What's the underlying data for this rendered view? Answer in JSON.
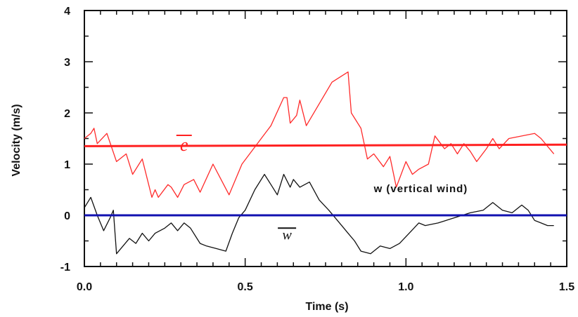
{
  "chart_data": {
    "type": "line",
    "title": "",
    "xlabel": "Time  (s)",
    "ylabel": "Velocity  (m/s)",
    "xlim": [
      0,
      1.5
    ],
    "ylim": [
      -1,
      4
    ],
    "xticks": [
      0.0,
      0.5,
      1.0,
      1.5
    ],
    "xtick_labels": [
      "0.0",
      "0.5",
      "1.0",
      "1.5"
    ],
    "yticks": [
      -1,
      0,
      1,
      2,
      3,
      4
    ],
    "ytick_labels": [
      "-1",
      "0",
      "1",
      "2",
      "3",
      "4"
    ],
    "grid": false,
    "annotations": [
      {
        "text": "w  (vertical wind)",
        "x": 0.9,
        "y": 0.45
      }
    ],
    "series": [
      {
        "label": "e",
        "color": "#ff2a2a",
        "points": [
          [
            0.0,
            1.5
          ],
          [
            0.02,
            1.6
          ],
          [
            0.03,
            1.7
          ],
          [
            0.04,
            1.4
          ],
          [
            0.07,
            1.6
          ],
          [
            0.1,
            1.05
          ],
          [
            0.11,
            1.1
          ],
          [
            0.13,
            1.2
          ],
          [
            0.15,
            0.8
          ],
          [
            0.18,
            1.1
          ],
          [
            0.21,
            0.35
          ],
          [
            0.22,
            0.5
          ],
          [
            0.23,
            0.35
          ],
          [
            0.26,
            0.6
          ],
          [
            0.27,
            0.55
          ],
          [
            0.29,
            0.35
          ],
          [
            0.31,
            0.6
          ],
          [
            0.34,
            0.7
          ],
          [
            0.36,
            0.45
          ],
          [
            0.4,
            1.0
          ],
          [
            0.45,
            0.4
          ],
          [
            0.49,
            1.0
          ],
          [
            0.55,
            1.5
          ],
          [
            0.58,
            1.75
          ],
          [
            0.62,
            2.3
          ],
          [
            0.63,
            2.3
          ],
          [
            0.64,
            1.8
          ],
          [
            0.66,
            1.95
          ],
          [
            0.67,
            2.25
          ],
          [
            0.69,
            1.75
          ],
          [
            0.77,
            2.6
          ],
          [
            0.82,
            2.8
          ],
          [
            0.83,
            2.0
          ],
          [
            0.86,
            1.7
          ],
          [
            0.88,
            1.1
          ],
          [
            0.9,
            1.2
          ],
          [
            0.93,
            0.95
          ],
          [
            0.95,
            1.15
          ],
          [
            0.97,
            0.55
          ],
          [
            1.0,
            1.05
          ],
          [
            1.02,
            0.8
          ],
          [
            1.04,
            0.9
          ],
          [
            1.07,
            1.0
          ],
          [
            1.09,
            1.55
          ],
          [
            1.12,
            1.3
          ],
          [
            1.14,
            1.4
          ],
          [
            1.16,
            1.2
          ],
          [
            1.18,
            1.4
          ],
          [
            1.2,
            1.25
          ],
          [
            1.22,
            1.05
          ],
          [
            1.25,
            1.3
          ],
          [
            1.27,
            1.5
          ],
          [
            1.29,
            1.3
          ],
          [
            1.32,
            1.5
          ],
          [
            1.4,
            1.6
          ],
          [
            1.42,
            1.5
          ],
          [
            1.46,
            1.2
          ]
        ]
      },
      {
        "label": "w (vertical wind)",
        "color": "#111111",
        "points": [
          [
            0.0,
            0.15
          ],
          [
            0.02,
            0.35
          ],
          [
            0.04,
            0.0
          ],
          [
            0.06,
            -0.3
          ],
          [
            0.08,
            -0.05
          ],
          [
            0.09,
            0.1
          ],
          [
            0.1,
            -0.75
          ],
          [
            0.12,
            -0.6
          ],
          [
            0.14,
            -0.45
          ],
          [
            0.16,
            -0.55
          ],
          [
            0.18,
            -0.35
          ],
          [
            0.2,
            -0.5
          ],
          [
            0.22,
            -0.35
          ],
          [
            0.25,
            -0.25
          ],
          [
            0.27,
            -0.15
          ],
          [
            0.29,
            -0.3
          ],
          [
            0.31,
            -0.15
          ],
          [
            0.33,
            -0.25
          ],
          [
            0.36,
            -0.55
          ],
          [
            0.38,
            -0.6
          ],
          [
            0.41,
            -0.65
          ],
          [
            0.44,
            -0.7
          ],
          [
            0.46,
            -0.35
          ],
          [
            0.48,
            -0.05
          ],
          [
            0.5,
            0.1
          ],
          [
            0.53,
            0.5
          ],
          [
            0.56,
            0.8
          ],
          [
            0.58,
            0.6
          ],
          [
            0.6,
            0.4
          ],
          [
            0.62,
            0.8
          ],
          [
            0.64,
            0.55
          ],
          [
            0.65,
            0.7
          ],
          [
            0.67,
            0.55
          ],
          [
            0.7,
            0.65
          ],
          [
            0.73,
            0.3
          ],
          [
            0.76,
            0.1
          ],
          [
            0.8,
            -0.2
          ],
          [
            0.82,
            -0.35
          ],
          [
            0.84,
            -0.5
          ],
          [
            0.86,
            -0.7
          ],
          [
            0.89,
            -0.75
          ],
          [
            0.92,
            -0.6
          ],
          [
            0.95,
            -0.65
          ],
          [
            0.98,
            -0.55
          ],
          [
            1.01,
            -0.35
          ],
          [
            1.04,
            -0.15
          ],
          [
            1.06,
            -0.2
          ],
          [
            1.1,
            -0.15
          ],
          [
            1.15,
            -0.05
          ],
          [
            1.2,
            0.05
          ],
          [
            1.24,
            0.1
          ],
          [
            1.27,
            0.25
          ],
          [
            1.3,
            0.1
          ],
          [
            1.33,
            0.05
          ],
          [
            1.36,
            0.2
          ],
          [
            1.38,
            0.1
          ],
          [
            1.4,
            -0.1
          ],
          [
            1.42,
            -0.15
          ],
          [
            1.44,
            -0.2
          ],
          [
            1.46,
            -0.2
          ]
        ]
      },
      {
        "label": "ē (mean)",
        "color": "#ff2020",
        "points": [
          [
            0.0,
            1.35
          ],
          [
            1.5,
            1.38
          ]
        ]
      },
      {
        "label": "w̄ (mean)",
        "color": "#1010b0",
        "points": [
          [
            0.0,
            0.0
          ],
          [
            1.5,
            0.0
          ]
        ]
      }
    ],
    "mean_labels": [
      {
        "text": "e",
        "x": 0.31,
        "y": 1.37,
        "color": "#ff2020"
      },
      {
        "text": "w",
        "x": 0.63,
        "y": -0.25,
        "color": "#111111"
      }
    ]
  }
}
